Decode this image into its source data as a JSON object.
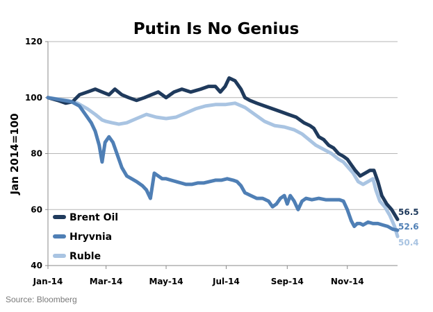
{
  "chart_data": {
    "type": "line",
    "title": "Putin Is No Genius",
    "xlabel": "",
    "ylabel": "Jan 2014=100",
    "ylim": [
      40,
      120
    ],
    "yticks": [
      40,
      60,
      80,
      100,
      120
    ],
    "x_range": [
      0,
      355
    ],
    "x_unit": "days since Jan 1, 2014",
    "xticks": [
      {
        "label": "Jan-14",
        "day": 0
      },
      {
        "label": "Mar-14",
        "day": 59
      },
      {
        "label": "May-14",
        "day": 120
      },
      {
        "label": "Jul-14",
        "day": 181
      },
      {
        "label": "Sep-14",
        "day": 243
      },
      {
        "label": "Nov-14",
        "day": 304
      }
    ],
    "grid": "horizontal",
    "legend_position": "bottom-left",
    "series": [
      {
        "name": "Ruble",
        "color": "#a9c4e2",
        "end_label": "50.4",
        "points": [
          [
            0,
            100
          ],
          [
            10,
            99.5
          ],
          [
            20,
            99
          ],
          [
            30,
            98
          ],
          [
            40,
            96
          ],
          [
            48,
            94
          ],
          [
            55,
            92
          ],
          [
            59,
            91.5
          ],
          [
            65,
            91
          ],
          [
            72,
            90.5
          ],
          [
            80,
            91
          ],
          [
            90,
            92.5
          ],
          [
            100,
            94
          ],
          [
            110,
            93
          ],
          [
            120,
            92.5
          ],
          [
            130,
            93
          ],
          [
            140,
            94.5
          ],
          [
            150,
            96
          ],
          [
            160,
            97
          ],
          [
            170,
            97.5
          ],
          [
            180,
            97.5
          ],
          [
            190,
            98
          ],
          [
            200,
            96.5
          ],
          [
            210,
            94
          ],
          [
            220,
            91.5
          ],
          [
            230,
            90
          ],
          [
            240,
            89.5
          ],
          [
            250,
            88.5
          ],
          [
            258,
            87
          ],
          [
            265,
            85
          ],
          [
            272,
            83
          ],
          [
            280,
            81.5
          ],
          [
            288,
            80
          ],
          [
            295,
            78
          ],
          [
            300,
            77
          ],
          [
            305,
            75
          ],
          [
            310,
            73
          ],
          [
            315,
            70
          ],
          [
            320,
            69
          ],
          [
            325,
            70
          ],
          [
            330,
            71
          ],
          [
            333,
            67
          ],
          [
            337,
            63
          ],
          [
            342,
            61
          ],
          [
            347,
            58
          ],
          [
            352,
            54
          ],
          [
            355,
            50.4
          ]
        ]
      },
      {
        "name": "Brent Oil",
        "color": "#1f3a5c",
        "end_label": "56.5",
        "points": [
          [
            0,
            100
          ],
          [
            10,
            99
          ],
          [
            18,
            98
          ],
          [
            25,
            98.5
          ],
          [
            32,
            101
          ],
          [
            40,
            102
          ],
          [
            48,
            103
          ],
          [
            55,
            102
          ],
          [
            62,
            101
          ],
          [
            68,
            103
          ],
          [
            75,
            101
          ],
          [
            82,
            100
          ],
          [
            90,
            99
          ],
          [
            98,
            100
          ],
          [
            105,
            101
          ],
          [
            112,
            102
          ],
          [
            120,
            100
          ],
          [
            128,
            102
          ],
          [
            136,
            103
          ],
          [
            145,
            102
          ],
          [
            155,
            103
          ],
          [
            163,
            104
          ],
          [
            170,
            104
          ],
          [
            175,
            102
          ],
          [
            180,
            104
          ],
          [
            184,
            107
          ],
          [
            190,
            106
          ],
          [
            196,
            103
          ],
          [
            200,
            100
          ],
          [
            205,
            99
          ],
          [
            212,
            98
          ],
          [
            220,
            97
          ],
          [
            228,
            96
          ],
          [
            236,
            95
          ],
          [
            244,
            94
          ],
          [
            252,
            93
          ],
          [
            260,
            91
          ],
          [
            266,
            90
          ],
          [
            270,
            89
          ],
          [
            275,
            86
          ],
          [
            280,
            85
          ],
          [
            285,
            83
          ],
          [
            290,
            82
          ],
          [
            295,
            80
          ],
          [
            300,
            79
          ],
          [
            304,
            78
          ],
          [
            308,
            76
          ],
          [
            312,
            74
          ],
          [
            317,
            72
          ],
          [
            322,
            73
          ],
          [
            327,
            74
          ],
          [
            331,
            74
          ],
          [
            335,
            70
          ],
          [
            339,
            65
          ],
          [
            344,
            62
          ],
          [
            349,
            60
          ],
          [
            355,
            56.5
          ]
        ]
      },
      {
        "name": "Hryvnia",
        "color": "#4f7fb5",
        "end_label": "52.6",
        "points": [
          [
            0,
            100
          ],
          [
            8,
            99.5
          ],
          [
            16,
            99
          ],
          [
            24,
            98.5
          ],
          [
            32,
            97
          ],
          [
            38,
            94
          ],
          [
            44,
            91
          ],
          [
            48,
            88
          ],
          [
            52,
            83
          ],
          [
            55,
            77
          ],
          [
            58,
            84
          ],
          [
            62,
            86
          ],
          [
            66,
            84
          ],
          [
            70,
            80
          ],
          [
            75,
            75
          ],
          [
            80,
            72
          ],
          [
            85,
            71
          ],
          [
            90,
            70
          ],
          [
            96,
            68.5
          ],
          [
            100,
            67
          ],
          [
            104,
            64
          ],
          [
            108,
            73
          ],
          [
            112,
            72
          ],
          [
            116,
            71
          ],
          [
            120,
            71
          ],
          [
            125,
            70.5
          ],
          [
            130,
            70
          ],
          [
            135,
            69.5
          ],
          [
            140,
            69
          ],
          [
            146,
            69
          ],
          [
            152,
            69.5
          ],
          [
            158,
            69.5
          ],
          [
            164,
            70
          ],
          [
            170,
            70.5
          ],
          [
            176,
            70.5
          ],
          [
            182,
            71
          ],
          [
            188,
            70.5
          ],
          [
            192,
            70
          ],
          [
            196,
            68.5
          ],
          [
            200,
            66
          ],
          [
            206,
            65
          ],
          [
            212,
            64
          ],
          [
            218,
            64
          ],
          [
            224,
            63
          ],
          [
            228,
            61
          ],
          [
            232,
            62
          ],
          [
            236,
            64
          ],
          [
            240,
            65
          ],
          [
            243,
            62
          ],
          [
            246,
            65
          ],
          [
            250,
            63
          ],
          [
            254,
            60
          ],
          [
            258,
            63
          ],
          [
            262,
            64
          ],
          [
            268,
            63.5
          ],
          [
            275,
            64
          ],
          [
            282,
            63.5
          ],
          [
            290,
            63.5
          ],
          [
            296,
            63.5
          ],
          [
            300,
            63
          ],
          [
            304,
            60
          ],
          [
            308,
            56
          ],
          [
            311,
            54
          ],
          [
            314,
            55
          ],
          [
            317,
            55
          ],
          [
            320,
            54.5
          ],
          [
            325,
            55.5
          ],
          [
            330,
            55
          ],
          [
            335,
            55
          ],
          [
            340,
            54.5
          ],
          [
            345,
            54
          ],
          [
            350,
            53
          ],
          [
            355,
            52.6
          ]
        ]
      }
    ]
  },
  "source": "Source: Bloomberg"
}
